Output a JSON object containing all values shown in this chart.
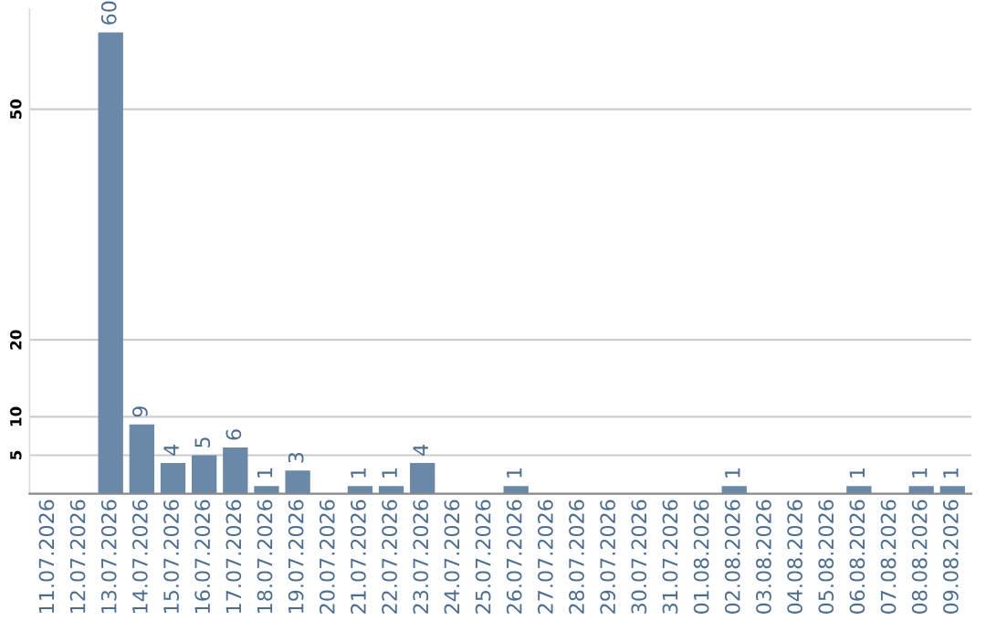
{
  "chart_data": {
    "type": "bar",
    "categories": [
      "11.07.2026",
      "12.07.2026",
      "13.07.2026",
      "14.07.2026",
      "15.07.2026",
      "16.07.2026",
      "17.07.2026",
      "18.07.2026",
      "19.07.2026",
      "20.07.2026",
      "21.07.2026",
      "22.07.2026",
      "23.07.2026",
      "24.07.2026",
      "25.07.2026",
      "26.07.2026",
      "27.07.2026",
      "28.07.2026",
      "29.07.2026",
      "30.07.2026",
      "31.07.2026",
      "01.08.2026",
      "02.08.2026",
      "03.08.2026",
      "04.08.2026",
      "05.08.2026",
      "06.08.2026",
      "07.08.2026",
      "08.08.2026",
      "09.08.2026"
    ],
    "values": [
      null,
      null,
      60,
      9,
      4,
      5,
      6,
      1,
      3,
      null,
      1,
      1,
      4,
      null,
      null,
      1,
      null,
      null,
      null,
      null,
      null,
      null,
      1,
      null,
      null,
      null,
      1,
      null,
      1,
      1
    ],
    "color": "#6a89a8",
    "ylim": [
      0,
      63
    ],
    "yticks": [
      5,
      10,
      20,
      50
    ],
    "grid": "y",
    "data_labels": true
  }
}
